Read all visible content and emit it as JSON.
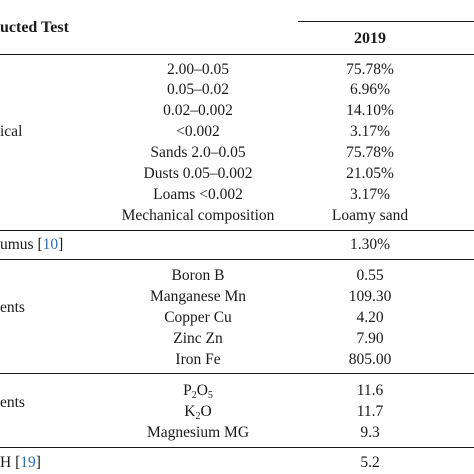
{
  "header": {
    "test_label": "ucted Test",
    "year": "2019"
  },
  "sections": [
    {
      "category": "ical",
      "rows": [
        {
          "param": "2.00–0.05",
          "value": "75.78%"
        },
        {
          "param": "0.05–0.02",
          "value": "6.96%"
        },
        {
          "param": "0.02–0.002",
          "value": "14.10%"
        },
        {
          "param": "<0.002",
          "value": "3.17%"
        },
        {
          "param": "Sands 2.0–0.05",
          "value": "75.78%"
        },
        {
          "param": "Dusts 0.05–0.002",
          "value": "21.05%"
        },
        {
          "param": "Loams <0.002",
          "value": "3.17%"
        },
        {
          "param": "Mechanical composition",
          "value": "Loamy sand"
        }
      ]
    },
    {
      "category": "umus",
      "cite": "10",
      "rows": [
        {
          "param": "",
          "value": "1.30%"
        }
      ]
    },
    {
      "category": "ents",
      "rows": [
        {
          "param": "Boron B",
          "value": "0.55"
        },
        {
          "param": "Manganese Mn",
          "value": "109.30"
        },
        {
          "param": "Copper Cu",
          "value": "4.20"
        },
        {
          "param": "Zinc Zn",
          "value": "7.90"
        },
        {
          "param": "Iron Fe",
          "value": "805.00"
        }
      ]
    },
    {
      "category": "ents",
      "rows": [
        {
          "param_base": "P",
          "param_sub1": "2",
          "param_mid": "O",
          "param_sub2": "5",
          "value": "11.6"
        },
        {
          "param_base": "K",
          "param_sub1": "2",
          "param_mid": "O",
          "value": "11.7"
        },
        {
          "param": "Magnesium MG",
          "value": "9.3"
        }
      ]
    },
    {
      "category": "H",
      "cite": "19",
      "rows": [
        {
          "param": "",
          "value": "5.2"
        }
      ]
    }
  ]
}
